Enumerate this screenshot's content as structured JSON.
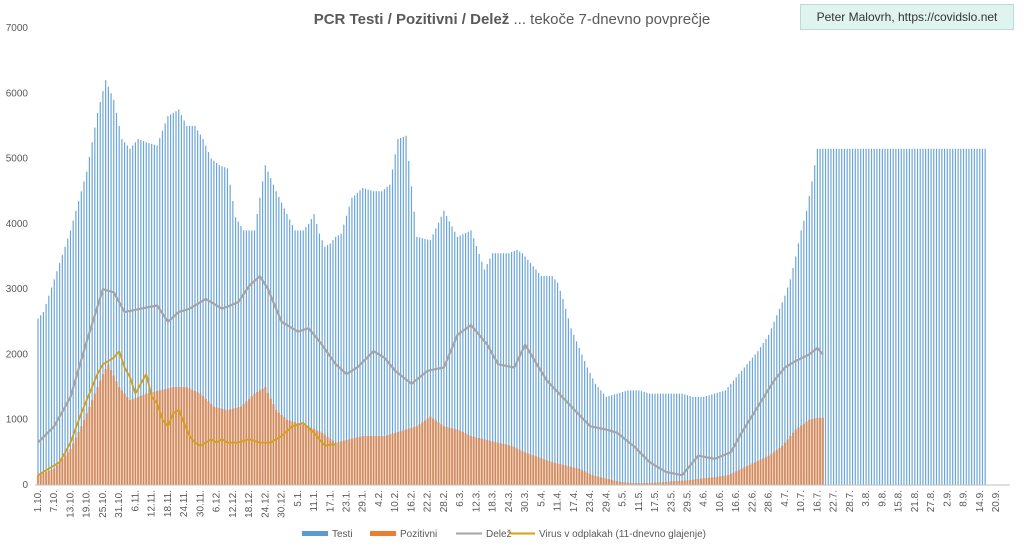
{
  "chart_data": {
    "type": "bar",
    "title_bold": "PCR Testi / Pozitivni / Delež",
    "title_rest": " ... tekoče 7-dnevno povprečje",
    "credit": "Peter Malovrh, https://covidslo.net",
    "ylim": [
      0,
      7000
    ],
    "y_ticks": [
      "0",
      "1000",
      "2000",
      "3000",
      "4000",
      "5000",
      "6000",
      "7000"
    ],
    "grid": "none",
    "legend_position": "bottom",
    "x_ticks": [
      "1.10.",
      "7.10.",
      "13.10.",
      "19.10.",
      "25.10.",
      "31.10.",
      "6.11.",
      "12.11.",
      "18.11.",
      "24.11.",
      "30.11.",
      "6.12.",
      "12.12.",
      "18.12.",
      "24.12.",
      "30.12.",
      "5.1.",
      "11.1.",
      "17.1.",
      "23.1.",
      "29.1.",
      "4.2.",
      "10.2.",
      "16.2.",
      "22.2.",
      "28.2.",
      "6.3.",
      "12.3.",
      "18.3.",
      "24.3.",
      "30.3.",
      "5.4.",
      "11.4.",
      "17.4.",
      "23.4.",
      "29.4.",
      "5.5.",
      "11.5.",
      "17.5.",
      "23.5.",
      "29.5.",
      "4.6.",
      "10.6.",
      "16.6.",
      "22.6.",
      "28.6.",
      "4.7.",
      "10.7.",
      "16.7.",
      "22.7.",
      "28.7.",
      "3.8.",
      "9.8.",
      "15.8.",
      "21.8.",
      "27.8.",
      "2.9.",
      "8.9.",
      "14.9.",
      "20.9."
    ],
    "tick_step_days": 6,
    "series": [
      {
        "name": "Testi",
        "kind": "bar",
        "color": "#5b9bd5",
        "key_days": [
          0,
          2,
          6,
          12,
          18,
          22,
          25,
          28,
          31,
          34,
          37,
          40,
          44,
          48,
          52,
          55,
          58,
          61,
          64,
          67,
          70,
          73,
          76,
          80,
          84,
          88,
          92,
          95,
          98,
          100,
          102,
          104,
          106,
          108,
          110,
          112,
          116,
          120,
          124,
          127,
          130,
          133,
          136,
          140,
          145,
          150,
          155,
          160,
          165,
          168,
          171,
          174,
          177,
          179,
          182,
          184,
          186,
          188,
          190,
          192,
          194,
          197,
          200,
          203,
          206,
          210,
          214,
          218,
          222,
          226,
          230,
          234,
          238,
          242,
          246,
          250,
          254,
          258,
          262,
          266,
          270,
          274,
          276,
          278,
          280,
          282,
          284,
          286,
          288,
          290,
          293,
          296,
          299,
          302,
          305,
          308,
          311,
          314,
          317,
          320,
          323,
          326,
          329,
          332,
          335,
          338,
          341,
          344,
          347,
          350
        ],
        "key_values": [
          2550,
          2650,
          3150,
          3900,
          4800,
          5700,
          6200,
          5900,
          5300,
          5150,
          5300,
          5250,
          5200,
          5650,
          5750,
          5500,
          5500,
          5300,
          5000,
          4900,
          4850,
          4100,
          3900,
          3900,
          4900,
          4500,
          4150,
          3900,
          3900,
          4000,
          4150,
          3850,
          3650,
          3700,
          3800,
          3850,
          4400,
          4550,
          4500,
          4500,
          4600,
          5300,
          5350,
          3800,
          3750,
          4200,
          3800,
          3900,
          3300,
          3550,
          3550,
          3550,
          3600,
          3550,
          3400,
          3300,
          3200,
          3200,
          3200,
          3100,
          2850,
          2400,
          2100,
          1800,
          1550,
          1350,
          1400,
          1450,
          1450,
          1400,
          1400,
          1400,
          1400,
          1350,
          1350,
          1400,
          1450,
          1650,
          1850,
          2050,
          2300,
          2700,
          2900,
          3150,
          3500,
          3900,
          4200,
          4650,
          5150,
          5150,
          5150,
          5150,
          5150,
          5150,
          5150,
          5150,
          5150,
          5150,
          5150,
          5150,
          5150,
          5150,
          5150,
          5150,
          5150,
          5150,
          5150,
          5150,
          5150,
          5150
        ]
      },
      {
        "name": "Pozitivni",
        "kind": "bar",
        "color": "#ed7d31",
        "key_days": [
          0,
          6,
          12,
          16,
          20,
          24,
          26,
          30,
          34,
          40,
          45,
          50,
          55,
          60,
          65,
          70,
          75,
          80,
          84,
          88,
          92,
          96,
          100,
          105,
          110,
          115,
          120,
          128,
          132,
          136,
          140,
          145,
          150,
          155,
          160,
          165,
          170,
          175,
          180,
          190,
          195,
          200,
          205,
          210,
          215,
          220,
          225,
          230,
          235,
          240,
          245,
          250,
          255,
          260,
          265,
          270,
          275,
          280,
          285,
          288,
          290
        ],
        "key_values": [
          150,
          250,
          550,
          900,
          1300,
          1700,
          1850,
          1500,
          1300,
          1400,
          1450,
          1500,
          1500,
          1400,
          1200,
          1150,
          1200,
          1400,
          1500,
          1150,
          1000,
          950,
          900,
          800,
          650,
          700,
          750,
          750,
          800,
          850,
          900,
          1050,
          900,
          850,
          750,
          700,
          650,
          600,
          500,
          350,
          300,
          250,
          150,
          100,
          50,
          30,
          30,
          40,
          60,
          70,
          100,
          120,
          150,
          250,
          350,
          450,
          600,
          850,
          1000,
          1030,
          1030
        ]
      },
      {
        "name": "Delež",
        "kind": "line",
        "color": "#a5a5a5",
        "key_days": [
          0,
          6,
          12,
          18,
          24,
          28,
          32,
          38,
          44,
          48,
          52,
          56,
          62,
          68,
          74,
          78,
          82,
          85,
          90,
          96,
          100,
          104,
          110,
          114,
          118,
          124,
          128,
          132,
          138,
          144,
          150,
          155,
          160,
          166,
          170,
          176,
          180,
          188,
          196,
          204,
          210,
          214,
          220,
          226,
          232,
          238,
          244,
          250,
          256,
          260,
          266,
          272,
          276,
          280,
          285,
          288,
          290
        ],
        "key_values": [
          650,
          900,
          1350,
          2200,
          3000,
          2950,
          2650,
          2700,
          2750,
          2500,
          2650,
          2700,
          2850,
          2700,
          2800,
          3050,
          3200,
          3000,
          2500,
          2350,
          2400,
          2200,
          1850,
          1700,
          1800,
          2050,
          1950,
          1750,
          1550,
          1750,
          1800,
          2300,
          2450,
          2150,
          1850,
          1800,
          2150,
          1600,
          1250,
          900,
          850,
          800,
          600,
          350,
          200,
          150,
          450,
          400,
          500,
          800,
          1200,
          1600,
          1800,
          1900,
          2000,
          2100,
          2000
        ]
      },
      {
        "name": "Virus v odplakah (11-dnevno glajenje)",
        "kind": "line",
        "color": "#d4a017",
        "key_days": [
          0,
          4,
          8,
          12,
          16,
          19,
          22,
          24,
          26,
          28,
          30,
          32,
          34,
          36,
          38,
          40,
          42,
          44,
          46,
          48,
          50,
          52,
          54,
          56,
          58,
          60,
          62,
          64,
          66,
          68,
          70,
          74,
          78,
          82,
          86,
          90,
          94,
          98,
          102,
          104,
          106,
          108,
          110
        ],
        "key_values": [
          150,
          250,
          350,
          650,
          1100,
          1400,
          1700,
          1850,
          1900,
          1950,
          2050,
          1800,
          1650,
          1400,
          1550,
          1700,
          1350,
          1250,
          1000,
          900,
          1100,
          1150,
          950,
          750,
          650,
          600,
          650,
          700,
          650,
          700,
          650,
          650,
          700,
          650,
          650,
          750,
          900,
          950,
          800,
          700,
          600,
          620,
          620
        ]
      }
    ]
  }
}
